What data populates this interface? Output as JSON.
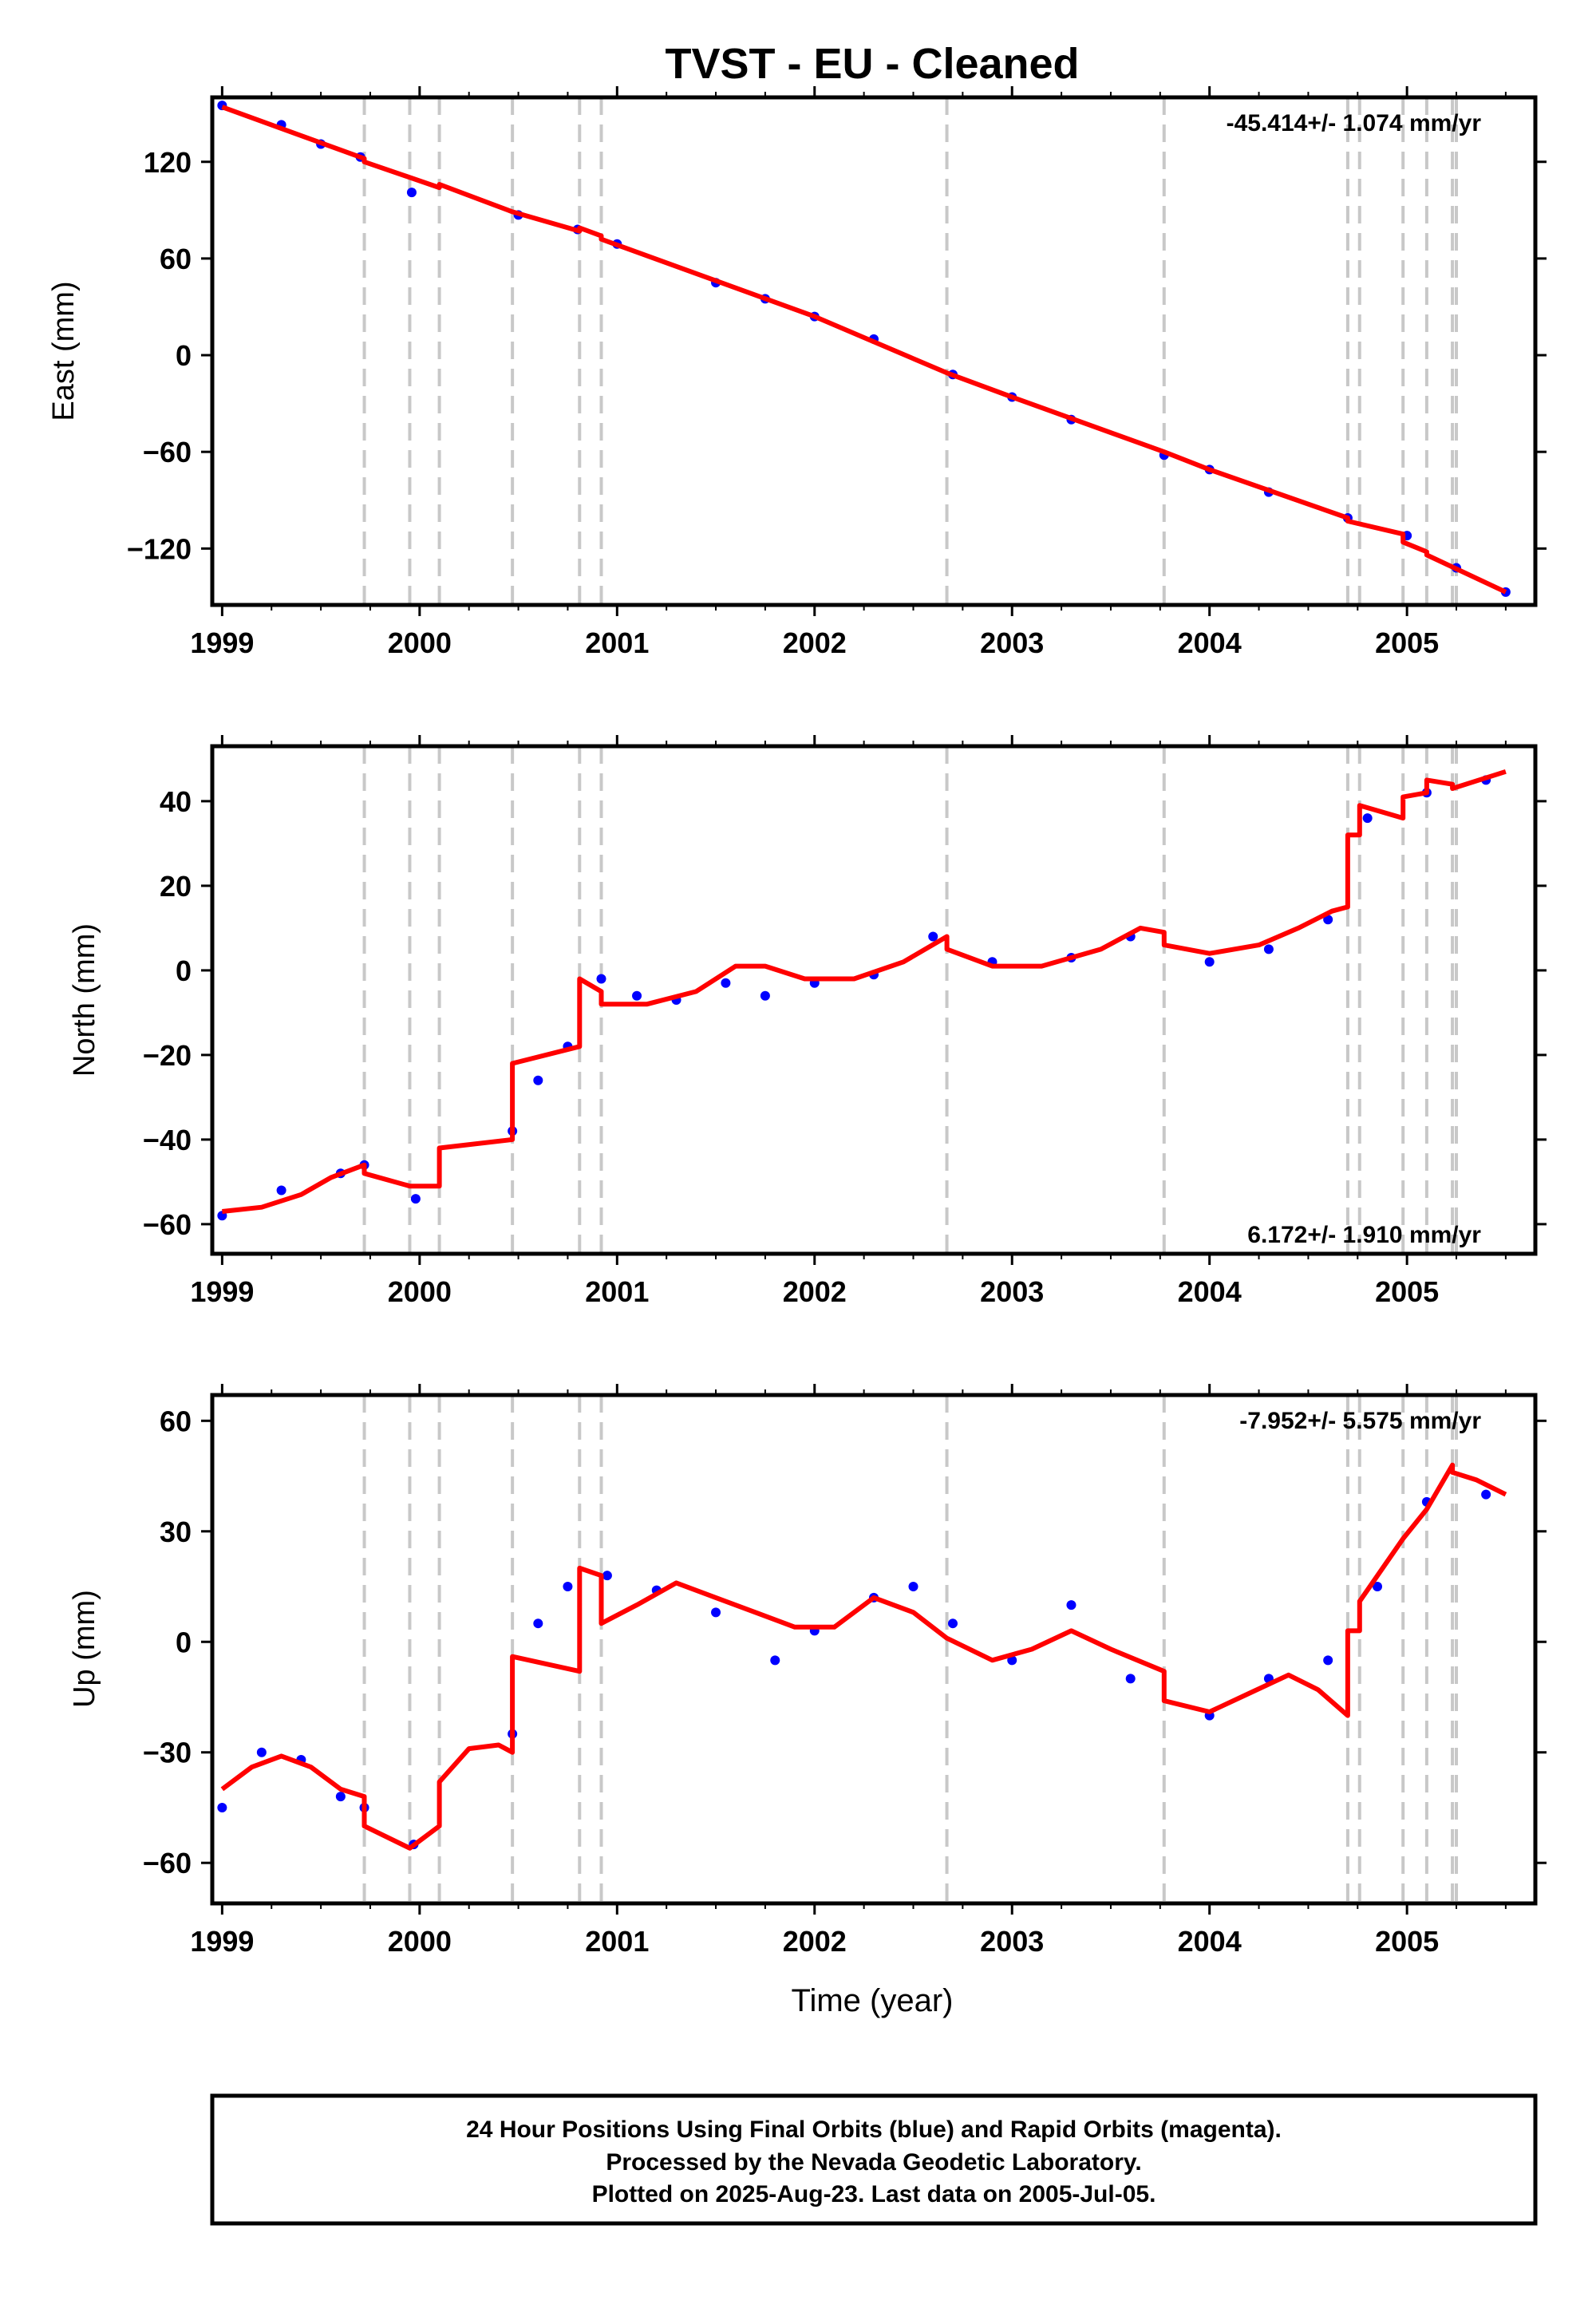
{
  "title": "TVST  - EU - Cleaned",
  "xlabel": "Time (year)",
  "colors": {
    "final_orbits": "#0000ff",
    "model": "#ff0000",
    "events": "#c8c8c8"
  },
  "footer": {
    "line1": "24 Hour Positions Using Final Orbits (blue) and Rapid Orbits (magenta).",
    "line2": "Processed by the Nevada Geodetic Laboratory.",
    "line3": "Plotted on 2025-Aug-23. Last data on 2005-Jul-05."
  },
  "event_lines": [
    1999.72,
    1999.95,
    2000.1,
    2000.47,
    2000.81,
    2000.92,
    2002.67,
    2003.77,
    2004.7,
    2004.76,
    2004.98,
    2005.1,
    2005.23,
    2005.25
  ],
  "chart_data": [
    {
      "type": "scatter",
      "name": "east",
      "ylabel": "East (mm)",
      "rate_label": "-45.414+/- 1.074 mm/yr",
      "xlim": [
        1998.95,
        2005.65
      ],
      "ylim": [
        -155,
        160
      ],
      "xticks": [
        "1999",
        "2000",
        "2001",
        "2002",
        "2003",
        "2004",
        "2005"
      ],
      "yticks": [
        "120",
        "60",
        "0",
        "-60",
        "-120"
      ],
      "model_x": [
        1999.0,
        1999.72,
        1999.72,
        2000.1,
        2000.1,
        2000.47,
        2000.47,
        2000.81,
        2000.81,
        2000.92,
        2000.92,
        2002.0,
        2002.67,
        2002.67,
        2003.0,
        2003.77,
        2003.77,
        2004.0,
        2004.7,
        2004.7,
        2004.98,
        2004.98,
        2005.1,
        2005.1,
        2005.5
      ],
      "model_y": [
        154,
        122,
        120,
        104,
        106,
        89,
        89,
        77,
        79,
        74,
        72,
        24,
        -11,
        -11,
        -26,
        -60,
        -60,
        -71,
        -101,
        -103,
        -111,
        -116,
        -122,
        -124,
        -147
      ],
      "points": [
        [
          1999.0,
          155
        ],
        [
          1999.3,
          143
        ],
        [
          1999.5,
          131
        ],
        [
          1999.7,
          123
        ],
        [
          1999.96,
          101
        ],
        [
          2000.5,
          87
        ],
        [
          2000.8,
          78
        ],
        [
          2001.0,
          69
        ],
        [
          2001.5,
          45
        ],
        [
          2001.75,
          35
        ],
        [
          2002.0,
          24
        ],
        [
          2002.3,
          10
        ],
        [
          2002.7,
          -12
        ],
        [
          2003.0,
          -26
        ],
        [
          2003.3,
          -40
        ],
        [
          2003.77,
          -62
        ],
        [
          2004.0,
          -71
        ],
        [
          2004.3,
          -85
        ],
        [
          2004.7,
          -101
        ],
        [
          2005.0,
          -112
        ],
        [
          2005.25,
          -132
        ],
        [
          2005.5,
          -147
        ]
      ]
    },
    {
      "type": "scatter",
      "name": "north",
      "ylabel": "North (mm)",
      "rate_label": "6.172+/- 1.910 mm/yr",
      "xlim": [
        1998.95,
        2005.65
      ],
      "ylim": [
        -67,
        53
      ],
      "xticks": [
        "1999",
        "2000",
        "2001",
        "2002",
        "2003",
        "2004",
        "2005"
      ],
      "yticks": [
        "40",
        "20",
        "0",
        "-20",
        "-40",
        "-60"
      ],
      "model_x": [
        1999.0,
        1999.2,
        1999.4,
        1999.55,
        1999.72,
        1999.72,
        1999.95,
        2000.1,
        2000.1,
        2000.47,
        2000.47,
        2000.81,
        2000.81,
        2000.92,
        2000.92,
        2001.15,
        2001.4,
        2001.6,
        2001.75,
        2001.95,
        2002.2,
        2002.45,
        2002.67,
        2002.67,
        2002.9,
        2003.15,
        2003.45,
        2003.65,
        2003.77,
        2003.77,
        2004.0,
        2004.25,
        2004.45,
        2004.62,
        2004.7,
        2004.7,
        2004.76,
        2004.76,
        2004.98,
        2004.98,
        2005.1,
        2005.1,
        2005.23,
        2005.23,
        2005.5
      ],
      "model_y": [
        -57,
        -56,
        -53,
        -49,
        -46,
        -48,
        -51,
        -51,
        -42,
        -40,
        -22,
        -18,
        -2,
        -5,
        -8,
        -8,
        -5,
        1,
        1,
        -2,
        -2,
        2,
        8,
        5,
        1,
        1,
        5,
        10,
        9,
        6,
        4,
        6,
        10,
        14,
        15,
        32,
        32,
        39,
        36,
        41,
        42,
        45,
        44,
        43,
        47
      ],
      "points": [
        [
          1999.0,
          -58
        ],
        [
          1999.3,
          -52
        ],
        [
          1999.6,
          -48
        ],
        [
          1999.72,
          -46
        ],
        [
          1999.98,
          -54
        ],
        [
          2000.47,
          -38
        ],
        [
          2000.6,
          -26
        ],
        [
          2000.75,
          -18
        ],
        [
          2000.92,
          -2
        ],
        [
          2001.1,
          -6
        ],
        [
          2001.3,
          -7
        ],
        [
          2001.55,
          -3
        ],
        [
          2001.75,
          -6
        ],
        [
          2002.0,
          -3
        ],
        [
          2002.3,
          -1
        ],
        [
          2002.6,
          8
        ],
        [
          2002.9,
          2
        ],
        [
          2003.3,
          3
        ],
        [
          2003.6,
          8
        ],
        [
          2004.0,
          2
        ],
        [
          2004.3,
          5
        ],
        [
          2004.6,
          12
        ],
        [
          2004.8,
          36
        ],
        [
          2005.1,
          42
        ],
        [
          2005.4,
          45
        ]
      ]
    },
    {
      "type": "scatter",
      "name": "up",
      "ylabel": "Up (mm)",
      "rate_label": "-7.952+/- 5.575 mm/yr",
      "xlim": [
        1998.95,
        2005.65
      ],
      "ylim": [
        -71,
        67
      ],
      "xticks": [
        "1999",
        "2000",
        "2001",
        "2002",
        "2003",
        "2004",
        "2005"
      ],
      "yticks": [
        "60",
        "30",
        "0",
        "-30",
        "-60"
      ],
      "model_x": [
        1999.0,
        1999.15,
        1999.3,
        1999.45,
        1999.6,
        1999.72,
        1999.72,
        1999.95,
        2000.1,
        2000.1,
        2000.25,
        2000.4,
        2000.47,
        2000.47,
        2000.81,
        2000.81,
        2000.92,
        2000.92,
        2001.1,
        2001.3,
        2001.5,
        2001.7,
        2001.9,
        2002.1,
        2002.3,
        2002.5,
        2002.67,
        2002.9,
        2003.1,
        2003.3,
        2003.5,
        2003.77,
        2003.77,
        2004.0,
        2004.2,
        2004.4,
        2004.55,
        2004.7,
        2004.7,
        2004.76,
        2004.76,
        2004.98,
        2004.98,
        2005.1,
        2005.1,
        2005.23,
        2005.23,
        2005.35,
        2005.5
      ],
      "model_y": [
        -40,
        -34,
        -31,
        -34,
        -40,
        -42,
        -50,
        -56,
        -50,
        -38,
        -29,
        -28,
        -30,
        -4,
        -8,
        20,
        18,
        5,
        10,
        16,
        12,
        8,
        4,
        4,
        12,
        8,
        1,
        -5,
        -2,
        3,
        -2,
        -8,
        -16,
        -19,
        -14,
        -9,
        -13,
        -20,
        3,
        3,
        11,
        28,
        28,
        36,
        36,
        48,
        46,
        44,
        40
      ],
      "points": [
        [
          1999.0,
          -45
        ],
        [
          1999.2,
          -30
        ],
        [
          1999.4,
          -32
        ],
        [
          1999.6,
          -42
        ],
        [
          1999.72,
          -45
        ],
        [
          1999.97,
          -55
        ],
        [
          2000.47,
          -25
        ],
        [
          2000.6,
          5
        ],
        [
          2000.75,
          15
        ],
        [
          2000.95,
          18
        ],
        [
          2001.2,
          14
        ],
        [
          2001.5,
          8
        ],
        [
          2001.8,
          -5
        ],
        [
          2002.0,
          3
        ],
        [
          2002.3,
          12
        ],
        [
          2002.5,
          15
        ],
        [
          2002.7,
          5
        ],
        [
          2003.0,
          -5
        ],
        [
          2003.3,
          10
        ],
        [
          2003.6,
          -10
        ],
        [
          2004.0,
          -20
        ],
        [
          2004.3,
          -10
        ],
        [
          2004.6,
          -5
        ],
        [
          2004.85,
          15
        ],
        [
          2005.1,
          38
        ],
        [
          2005.4,
          40
        ]
      ]
    }
  ]
}
